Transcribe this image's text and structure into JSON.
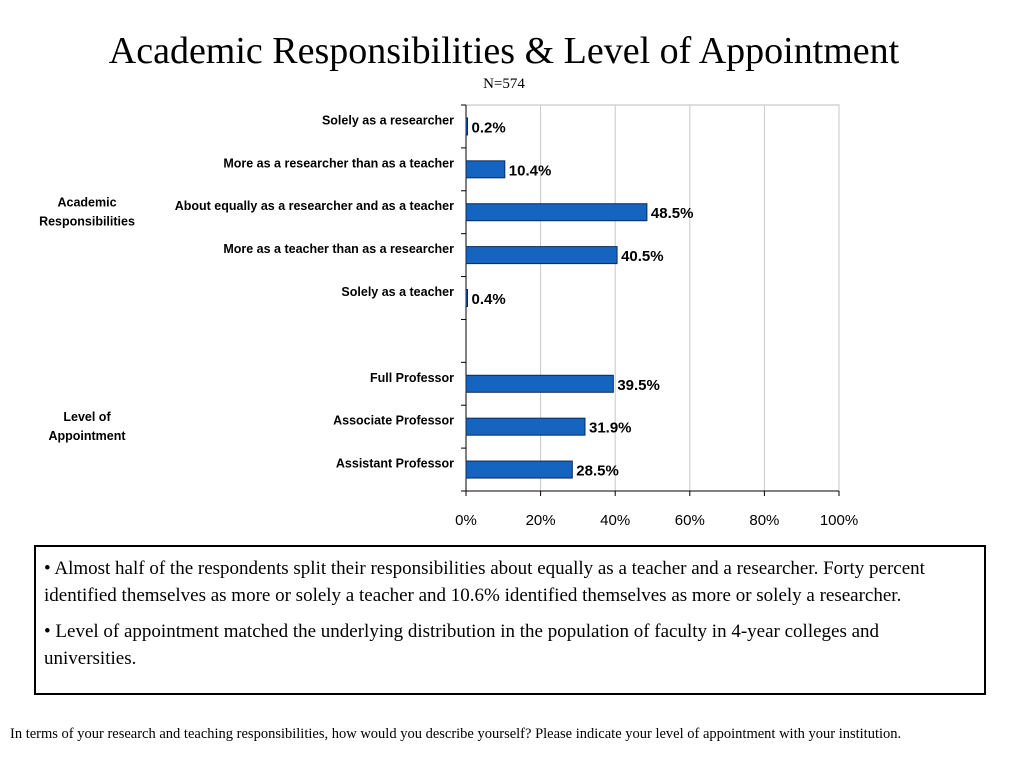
{
  "slide": {
    "title": "Academic Responsibilities & Level of Appointment",
    "subtitle": "N=574"
  },
  "chart_data": {
    "type": "bar",
    "orientation": "horizontal",
    "categories": [
      "Solely as a researcher",
      "More as a researcher than as a teacher",
      "About equally as a researcher and as a teacher",
      "More as a teacher than as a researcher",
      "Solely as a teacher",
      "",
      "Full Professor",
      "Associate Professor",
      "Assistant Professor"
    ],
    "values": [
      0.2,
      10.4,
      48.5,
      40.5,
      0.4,
      null,
      39.5,
      31.9,
      28.5
    ],
    "value_labels": [
      "0.2%",
      "10.4%",
      "48.5%",
      "40.5%",
      "0.4%",
      "",
      "39.5%",
      "31.9%",
      "28.5%"
    ],
    "groups": [
      {
        "label_lines": [
          "Academic",
          "Responsibilities"
        ],
        "category_range": [
          0,
          4
        ]
      },
      {
        "label_lines": [
          "Level of",
          "Appointment"
        ],
        "category_range": [
          6,
          8
        ]
      }
    ],
    "xlim": [
      0,
      100
    ],
    "x_ticks": [
      "0%",
      "20%",
      "40%",
      "60%",
      "80%",
      "100%"
    ],
    "grid": true,
    "legend": "none",
    "bar_color": "#1565c0",
    "bar_border_color": "#0a2a5c",
    "grid_color": "#c8c8c8"
  },
  "notes": {
    "bullets": [
      "• Almost half of the respondents split their responsibilities about equally as a teacher and a researcher. Forty percent identified themselves as more or solely a teacher and 10.6%  identified themselves as more or solely a researcher.",
      "• Level of appointment matched the underlying distribution in the population of faculty in 4-year colleges and universities."
    ]
  },
  "footnote": "In terms of your research and teaching responsibilities, how would you describe yourself? Please indicate your level of appointment with your institution."
}
